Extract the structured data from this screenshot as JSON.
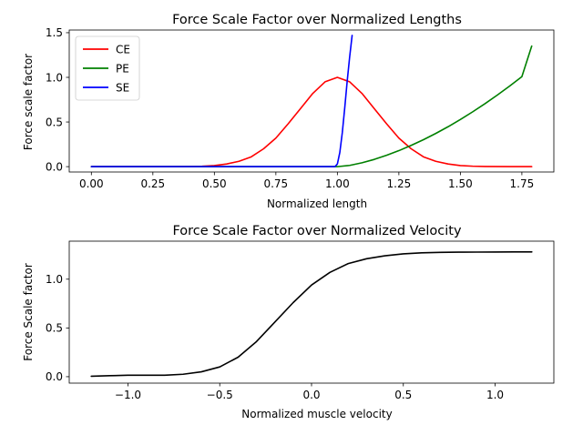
{
  "chart_data": [
    {
      "type": "line",
      "title": "Force Scale Factor over Normalized Lengths",
      "xlabel": "Normalized length",
      "ylabel": "Force scale factor",
      "xlim": [
        -0.09,
        1.88
      ],
      "ylim": [
        -0.06,
        1.53
      ],
      "xticks": [
        0.0,
        0.25,
        0.5,
        0.75,
        1.0,
        1.25,
        1.5,
        1.75
      ],
      "xtick_labels": [
        "0.00",
        "0.25",
        "0.50",
        "0.75",
        "1.00",
        "1.25",
        "1.50",
        "1.75"
      ],
      "yticks": [
        0.0,
        0.5,
        1.0,
        1.5
      ],
      "ytick_labels": [
        "0.0",
        "0.5",
        "1.0",
        "1.5"
      ],
      "legend": "top-left",
      "series": [
        {
          "name": "CE",
          "color": "#ff0000",
          "x": [
            0.0,
            0.1,
            0.2,
            0.3,
            0.4,
            0.45,
            0.5,
            0.55,
            0.6,
            0.65,
            0.7,
            0.75,
            0.8,
            0.85,
            0.9,
            0.95,
            1.0,
            1.05,
            1.1,
            1.15,
            1.2,
            1.25,
            1.3,
            1.35,
            1.4,
            1.45,
            1.5,
            1.55,
            1.6,
            1.7,
            1.79
          ],
          "y": [
            0.0,
            0.0,
            0.0,
            0.0,
            0.002,
            0.005,
            0.012,
            0.03,
            0.06,
            0.11,
            0.2,
            0.32,
            0.48,
            0.65,
            0.82,
            0.95,
            1.0,
            0.95,
            0.82,
            0.65,
            0.48,
            0.32,
            0.2,
            0.11,
            0.06,
            0.03,
            0.012,
            0.005,
            0.002,
            0.0,
            0.0
          ]
        },
        {
          "name": "PE",
          "color": "#008000",
          "x": [
            0.0,
            0.5,
            1.0,
            1.05,
            1.1,
            1.15,
            1.2,
            1.25,
            1.3,
            1.35,
            1.4,
            1.45,
            1.5,
            1.55,
            1.6,
            1.65,
            1.7,
            1.75,
            1.79
          ],
          "y": [
            0.0,
            0.0,
            0.0,
            0.014,
            0.043,
            0.081,
            0.127,
            0.179,
            0.238,
            0.302,
            0.372,
            0.447,
            0.528,
            0.614,
            0.705,
            0.801,
            0.902,
            1.008,
            1.35
          ]
        },
        {
          "name": "SE",
          "color": "#0000ff",
          "x": [
            0.0,
            0.5,
            0.99,
            1.0,
            1.01,
            1.02,
            1.03,
            1.04,
            1.05,
            1.06
          ],
          "y": [
            0.0,
            0.0,
            0.0,
            0.03,
            0.16,
            0.38,
            0.66,
            0.96,
            1.23,
            1.47
          ]
        }
      ]
    },
    {
      "type": "line",
      "title": "Force Scale Factor over Normalized Velocity",
      "xlabel": "Normalized muscle velocity",
      "ylabel": "Force Scale factor",
      "xlim": [
        -1.32,
        1.32
      ],
      "ylim": [
        -0.066,
        1.39
      ],
      "xticks": [
        -1.0,
        -0.5,
        0.0,
        0.5,
        1.0
      ],
      "xtick_labels": [
        "−1.0",
        "−0.5",
        "0.0",
        "0.5",
        "1.0"
      ],
      "yticks": [
        0.0,
        0.5,
        1.0
      ],
      "ytick_labels": [
        "0.0",
        "0.5",
        "1.0"
      ],
      "series": [
        {
          "color": "#000000",
          "x": [
            -1.2,
            -1.1,
            -1.0,
            -0.9,
            -0.8,
            -0.7,
            -0.6,
            -0.5,
            -0.4,
            -0.3,
            -0.2,
            -0.1,
            0.0,
            0.1,
            0.2,
            0.3,
            0.4,
            0.5,
            0.6,
            0.7,
            0.8,
            0.9,
            1.0,
            1.1,
            1.2
          ],
          "y": [
            0.005,
            0.01,
            0.015,
            0.015,
            0.015,
            0.025,
            0.05,
            0.1,
            0.2,
            0.36,
            0.56,
            0.76,
            0.94,
            1.07,
            1.16,
            1.21,
            1.24,
            1.26,
            1.27,
            1.275,
            1.277,
            1.278,
            1.279,
            1.28,
            1.28
          ]
        }
      ]
    }
  ]
}
